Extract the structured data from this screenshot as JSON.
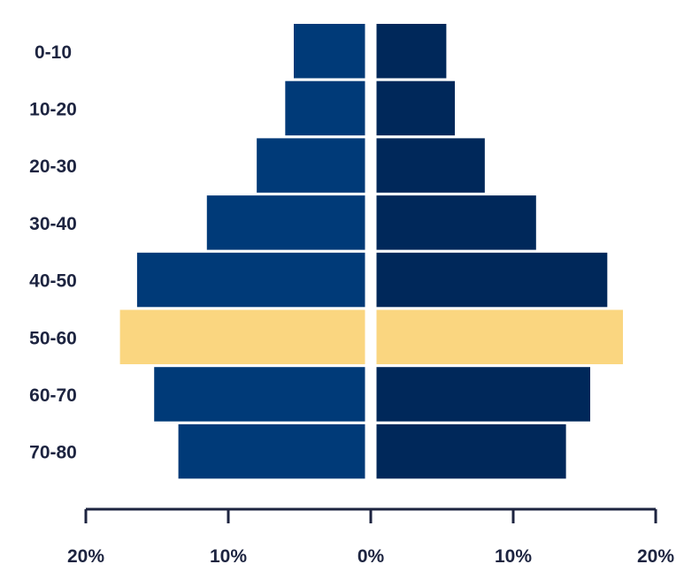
{
  "chart_data": {
    "type": "bar",
    "orientation": "horizontal-diverging",
    "categories": [
      "0-10",
      "10-20",
      "20-30",
      "30-40",
      "40-50",
      "50-60",
      "60-70",
      "70-80"
    ],
    "series": [
      {
        "side": "left",
        "values": [
          5.0,
          5.6,
          7.6,
          11.1,
          16.0,
          17.2,
          14.8,
          13.1
        ]
      },
      {
        "side": "right",
        "values": [
          4.9,
          5.5,
          7.6,
          11.2,
          16.2,
          17.3,
          15.0,
          13.3
        ]
      }
    ],
    "highlight_category": "50-60",
    "xlim": [
      -20,
      20
    ],
    "xticks": [
      {
        "value": -20,
        "label": "20%"
      },
      {
        "value": -10,
        "label": "10%"
      },
      {
        "value": 0,
        "label": "0%"
      },
      {
        "value": 10,
        "label": "10%"
      },
      {
        "value": 20,
        "label": "20%"
      }
    ],
    "colors": {
      "left": "#003a78",
      "right": "#00285a",
      "highlight": "#fad680",
      "axis": "#1d2440",
      "text": "#1d2440"
    }
  }
}
